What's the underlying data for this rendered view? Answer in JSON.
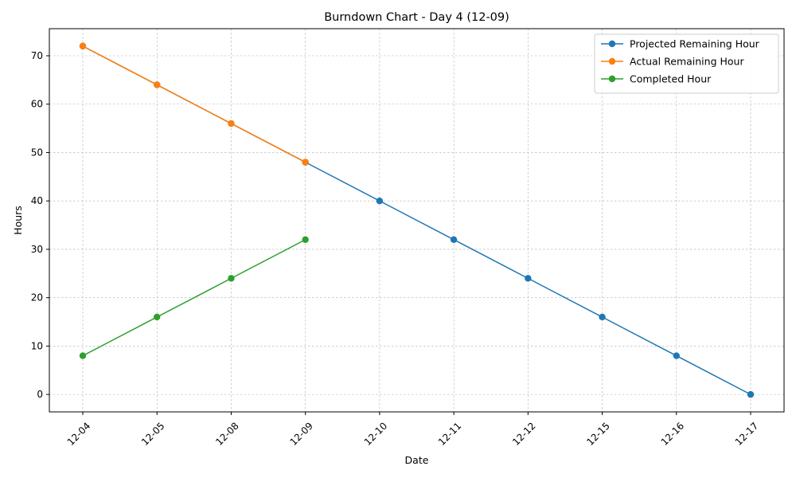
{
  "chart_data": {
    "type": "line",
    "title": "Burndown Chart - Day 4 (12-09)",
    "xlabel": "Date",
    "ylabel": "Hours",
    "categories": [
      "12-04",
      "12-05",
      "12-08",
      "12-09",
      "12-10",
      "12-11",
      "12-12",
      "12-15",
      "12-16",
      "12-17"
    ],
    "ylim": [
      -3.6,
      75.6
    ],
    "yticks": [
      0,
      10,
      20,
      30,
      40,
      50,
      60,
      70
    ],
    "grid": true,
    "legend_position": "top-right",
    "series": [
      {
        "name": "Projected Remaining Hour",
        "color": "#1f77b4",
        "values": [
          72,
          64,
          56,
          48,
          40,
          32,
          24,
          16,
          8,
          0
        ]
      },
      {
        "name": "Actual Remaining Hour",
        "color": "#ff7f0e",
        "values": [
          72,
          64,
          56,
          48,
          null,
          null,
          null,
          null,
          null,
          null
        ]
      },
      {
        "name": "Completed Hour",
        "color": "#2ca02c",
        "values": [
          8,
          16,
          24,
          32,
          null,
          null,
          null,
          null,
          null,
          null
        ]
      }
    ]
  }
}
